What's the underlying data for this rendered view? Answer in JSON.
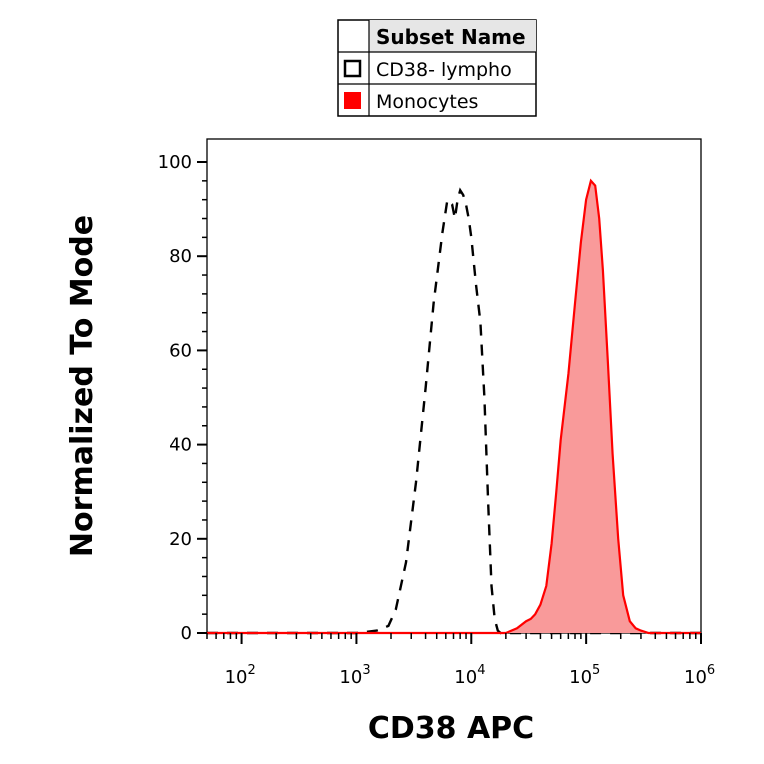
{
  "chart_data": {
    "type": "area",
    "xlabel": "CD38 APC",
    "ylabel": "Normalized To Mode",
    "x_scale": "log",
    "xlim": [
      50,
      1000000
    ],
    "ylim": [
      0,
      100
    ],
    "y_ticks": [
      "0",
      "20",
      "40",
      "60",
      "80",
      "100"
    ],
    "x_ticks": [
      {
        "base": "10",
        "exp": "2",
        "value": 100
      },
      {
        "base": "10",
        "exp": "3",
        "value": 1000
      },
      {
        "base": "10",
        "exp": "4",
        "value": 10000
      },
      {
        "base": "10",
        "exp": "5",
        "value": 100000
      },
      {
        "base": "10",
        "exp": "6",
        "value": 1000000
      }
    ],
    "legend": {
      "header": "Subset Name",
      "placement": "top-center",
      "entries": [
        {
          "label": "CD38- lympho",
          "style": "open-square"
        },
        {
          "label": "Monocytes",
          "style": "filled-square"
        }
      ]
    },
    "series": [
      {
        "name": "CD38- lympho",
        "style": "dashed",
        "color": "#000000",
        "x": [
          50,
          1000,
          1500,
          1900,
          2200,
          2700,
          3300,
          4000,
          4700,
          5600,
          6200,
          6800,
          7200,
          7600,
          8000,
          8500,
          9000,
          9500,
          10000,
          11000,
          12000,
          13000,
          14000,
          15000,
          16000,
          17000,
          18000,
          1000000
        ],
        "y": [
          0,
          0,
          0.5,
          1.5,
          5,
          15,
          32,
          52,
          70,
          85,
          92,
          91,
          88,
          92,
          94,
          93,
          91,
          88,
          84,
          74,
          66,
          50,
          28,
          10,
          3,
          0.5,
          0,
          0
        ]
      },
      {
        "name": "Monocytes",
        "style": "filled",
        "color": "#ff0000",
        "fill": "#f99a9a",
        "x": [
          50,
          20000,
          25000,
          30000,
          33000,
          36000,
          40000,
          45000,
          50000,
          55000,
          60000,
          70000,
          80000,
          90000,
          100000,
          110000,
          120000,
          130000,
          140000,
          155000,
          170000,
          190000,
          210000,
          240000,
          270000,
          300000,
          350000,
          1000000
        ],
        "y": [
          0,
          0,
          1,
          2.5,
          3,
          4,
          6,
          10,
          19,
          30,
          41,
          55,
          70,
          83,
          92,
          96,
          95,
          88,
          77,
          57,
          38,
          20,
          8,
          2.5,
          1,
          0.5,
          0,
          0
        ]
      }
    ]
  }
}
